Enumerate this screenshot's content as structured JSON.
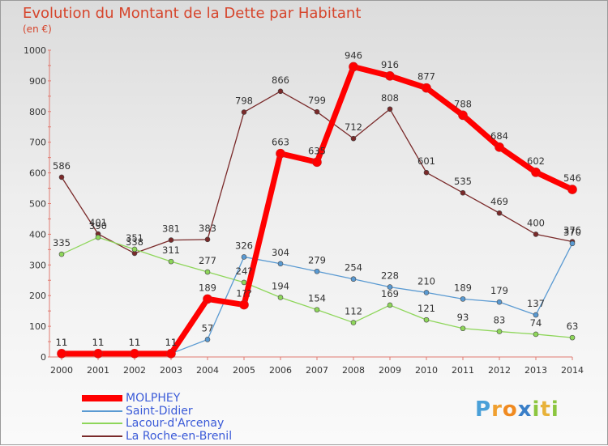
{
  "header": {
    "title": "Evolution du Montant de la Dette par Habitant",
    "unit": "(en €)"
  },
  "logo": {
    "text": "Proxiti",
    "letters": [
      {
        "ch": "P",
        "color": "#4aa0d8"
      },
      {
        "ch": "r",
        "color": "#f0a030"
      },
      {
        "ch": "o",
        "color": "#f08a20"
      },
      {
        "ch": "x",
        "color": "#3a7fc8"
      },
      {
        "ch": "i",
        "color": "#8cc63f"
      },
      {
        "ch": "t",
        "color": "#e8b23a"
      },
      {
        "ch": "i",
        "color": "#8cc63f"
      }
    ]
  },
  "chart_data": {
    "type": "line",
    "title": "Evolution du Montant de la Dette par Habitant",
    "ylabel": "(en €)",
    "xlabel": "",
    "x": [
      "2000",
      "2001",
      "2002",
      "2003",
      "2004",
      "2005",
      "2006",
      "2007",
      "2008",
      "2009",
      "2010",
      "2011",
      "2012",
      "2013",
      "2014"
    ],
    "ylim": [
      0,
      1000
    ],
    "yticks": [
      0,
      100,
      200,
      300,
      400,
      500,
      600,
      700,
      800,
      900,
      1000
    ],
    "grid": false,
    "legend_position": "bottom-left",
    "series": [
      {
        "name": "MOLPHEY",
        "color": "#ff0000",
        "values": [
          11,
          11,
          11,
          11,
          189,
          170,
          663,
          635,
          946,
          916,
          877,
          788,
          684,
          602,
          546
        ],
        "labels": [
          "11",
          "11",
          "11",
          "11",
          "189",
          "1??",
          "663",
          "635",
          "946",
          "916",
          "877",
          "788",
          "684",
          "602",
          "546"
        ]
      },
      {
        "name": "Saint-Didier",
        "color": "#5a9ad2",
        "values": [
          11,
          11,
          11,
          11,
          57,
          326,
          304,
          279,
          254,
          228,
          210,
          189,
          179,
          137,
          370
        ],
        "labels": [
          "11",
          "11",
          "11",
          "11",
          "57",
          "326",
          "304",
          "279",
          "254",
          "228",
          "210",
          "189",
          "179",
          "137",
          "370"
        ]
      },
      {
        "name": "Lacour-d'Arcenay",
        "color": "#8ed65a",
        "values": [
          335,
          390,
          351,
          311,
          277,
          243,
          194,
          154,
          112,
          169,
          121,
          93,
          83,
          74,
          63
        ],
        "labels": [
          "335",
          "390",
          "351",
          "311",
          "277",
          "24?",
          "194",
          "154",
          "112",
          "169",
          "121",
          "93",
          "83",
          "74",
          "63"
        ]
      },
      {
        "name": "La Roche-en-Brenil",
        "color": "#7a2a2a",
        "values": [
          586,
          401,
          338,
          381,
          383,
          798,
          866,
          799,
          712,
          808,
          601,
          535,
          469,
          400,
          376
        ],
        "labels": [
          "586",
          "401",
          "338",
          "381",
          "383",
          "798",
          "866",
          "799",
          "712",
          "808",
          "601",
          "535",
          "469",
          "400",
          "376"
        ]
      }
    ]
  }
}
